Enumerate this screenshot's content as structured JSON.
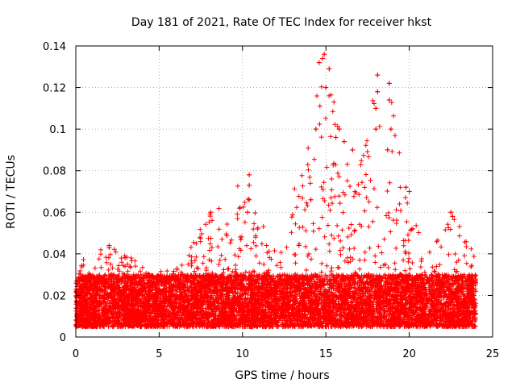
{
  "chart_data": {
    "type": "scatter",
    "title": "Day 181 of 2021, Rate Of TEC Index for receiver hkst",
    "xlabel": "GPS time / hours",
    "ylabel": "ROTI / TECUs",
    "xlim": [
      0,
      25
    ],
    "ylim": [
      0,
      0.14
    ],
    "xticks": [
      0,
      5,
      10,
      15,
      20,
      25
    ],
    "xtick_labels": [
      "0",
      "5",
      "10",
      "15",
      "20",
      "25"
    ],
    "yticks": [
      0,
      0.02,
      0.04,
      0.06,
      0.08,
      0.1,
      0.12,
      0.14
    ],
    "ytick_labels": [
      "0",
      "0.02",
      "0.04",
      "0.06",
      "0.08",
      "0.1",
      "0.12",
      "0.14"
    ],
    "grid": true,
    "marker": "+",
    "color": "#ff0000",
    "series": [
      {
        "name": "ROTI",
        "x_range": [
          0,
          24
        ],
        "baseline_band": [
          0.005,
          0.03
        ],
        "envelope": [
          {
            "x": 0,
            "y_max": 0.036
          },
          {
            "x": 2,
            "y_max": 0.044
          },
          {
            "x": 5,
            "y_max": 0.035
          },
          {
            "x": 6,
            "y_max": 0.032
          },
          {
            "x": 8,
            "y_max": 0.06
          },
          {
            "x": 10.4,
            "y_max": 0.078
          },
          {
            "x": 12,
            "y_max": 0.04
          },
          {
            "x": 14,
            "y_max": 0.1
          },
          {
            "x": 14.9,
            "y_max": 0.136
          },
          {
            "x": 16,
            "y_max": 0.1
          },
          {
            "x": 17,
            "y_max": 0.08
          },
          {
            "x": 18.1,
            "y_max": 0.126
          },
          {
            "x": 18.8,
            "y_max": 0.122
          },
          {
            "x": 19.8,
            "y_max": 0.072
          },
          {
            "x": 21,
            "y_max": 0.04
          },
          {
            "x": 22.5,
            "y_max": 0.06
          },
          {
            "x": 24,
            "y_max": 0.042
          }
        ],
        "highlights": [
          {
            "x": 2.0,
            "y": 0.044
          },
          {
            "x": 2.0,
            "y": 0.043
          },
          {
            "x": 8.1,
            "y": 0.06
          },
          {
            "x": 10.4,
            "y": 0.078
          },
          {
            "x": 10.4,
            "y": 0.073
          },
          {
            "x": 10.4,
            "y": 0.066
          },
          {
            "x": 10.3,
            "y": 0.06
          },
          {
            "x": 14.1,
            "y": 0.066
          },
          {
            "x": 14.4,
            "y": 0.1
          },
          {
            "x": 14.6,
            "y": 0.132
          },
          {
            "x": 14.8,
            "y": 0.134
          },
          {
            "x": 14.9,
            "y": 0.136
          },
          {
            "x": 15.2,
            "y": 0.129
          },
          {
            "x": 15.0,
            "y": 0.12
          },
          {
            "x": 15.6,
            "y": 0.096
          },
          {
            "x": 15.8,
            "y": 0.1
          },
          {
            "x": 16.1,
            "y": 0.094
          },
          {
            "x": 16.6,
            "y": 0.09
          },
          {
            "x": 18.1,
            "y": 0.126
          },
          {
            "x": 18.1,
            "y": 0.118
          },
          {
            "x": 18.0,
            "y": 0.11
          },
          {
            "x": 18.0,
            "y": 0.1
          },
          {
            "x": 18.8,
            "y": 0.122
          },
          {
            "x": 18.8,
            "y": 0.114
          },
          {
            "x": 18.9,
            "y": 0.1
          },
          {
            "x": 18.7,
            "y": 0.09
          },
          {
            "x": 19.8,
            "y": 0.072
          },
          {
            "x": 20.0,
            "y": 0.07
          },
          {
            "x": 22.5,
            "y": 0.06
          },
          {
            "x": 22.6,
            "y": 0.058
          }
        ]
      }
    ]
  }
}
